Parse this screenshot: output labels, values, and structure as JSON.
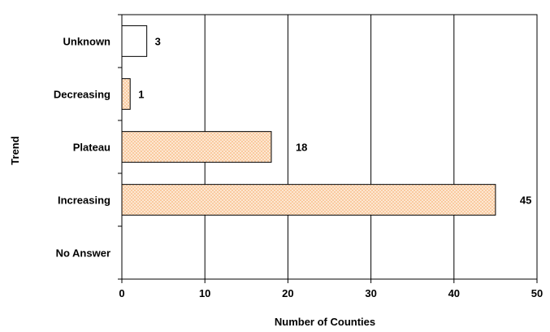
{
  "chart_data": {
    "type": "bar",
    "orientation": "horizontal",
    "title": "",
    "xlabel": "Number of Counties",
    "ylabel": "Trend",
    "categories": [
      "Unknown",
      "Decreasing",
      "Plateau",
      "Increasing",
      "No Answer"
    ],
    "values": [
      3,
      1,
      18,
      45,
      0
    ],
    "data_labels": [
      "3",
      "1",
      "18",
      "45",
      ""
    ],
    "xlim": [
      0,
      50
    ],
    "x_ticks": [
      0,
      10,
      20,
      30,
      40,
      50
    ],
    "x_tick_labels": [
      "0",
      "10",
      "20",
      "30",
      "40",
      "50"
    ],
    "grid": "vertical",
    "legend": "none",
    "colors": {
      "hatched_fill": "#f9c79a",
      "hatched_bg": "#fff3e6",
      "plain_fill": "#ffffff",
      "stroke": "#000000"
    },
    "hatched": [
      false,
      true,
      true,
      true,
      false
    ]
  }
}
